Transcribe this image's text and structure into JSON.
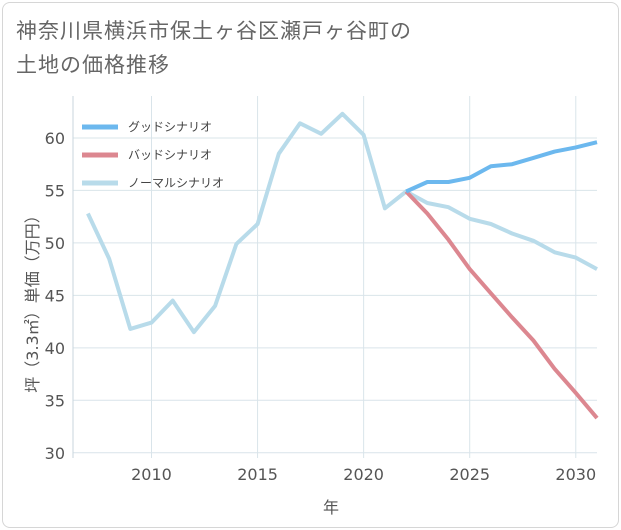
{
  "title_line1": "神奈川県横浜市保土ヶ谷区瀬戸ヶ谷町の",
  "title_line2": "土地の価格推移",
  "chart_data": {
    "type": "line",
    "xlabel": "年",
    "ylabel": "坪（3.3㎡）単価（万円）",
    "xlim": [
      2006.3,
      2031
    ],
    "ylim": [
      29.5,
      64
    ],
    "xticks": [
      2010,
      2015,
      2020,
      2025,
      2030
    ],
    "yticks": [
      30,
      35,
      40,
      45,
      50,
      55,
      60
    ],
    "grid": true,
    "legend_position": "top-left",
    "series": [
      {
        "name": "グッドシナリオ",
        "color": "#6cb8ee",
        "x": [
          2022,
          2023,
          2024,
          2025,
          2026,
          2027,
          2028,
          2029,
          2030,
          2031
        ],
        "values": [
          54.9,
          55.8,
          55.8,
          56.2,
          57.3,
          57.5,
          58.1,
          58.7,
          59.1,
          59.6
        ]
      },
      {
        "name": "バッドシナリオ",
        "color": "#dc8790",
        "x": [
          2022,
          2023,
          2024,
          2025,
          2026,
          2027,
          2028,
          2029,
          2030,
          2031
        ],
        "values": [
          54.9,
          52.8,
          50.3,
          47.5,
          45.2,
          42.9,
          40.7,
          38.0,
          35.7,
          33.3
        ]
      },
      {
        "name": "ノーマルシナリオ",
        "color": "#b8dbea",
        "x": [
          2007,
          2008,
          2009,
          2010,
          2011,
          2012,
          2013,
          2014,
          2015,
          2016,
          2017,
          2018,
          2019,
          2020,
          2021,
          2022,
          2023,
          2024,
          2025,
          2026,
          2027,
          2028,
          2029,
          2030,
          2031
        ],
        "values": [
          52.8,
          48.5,
          41.8,
          42.4,
          44.5,
          41.5,
          44.0,
          49.9,
          51.8,
          58.5,
          61.4,
          60.4,
          62.3,
          60.3,
          53.3,
          54.9,
          53.8,
          53.4,
          52.3,
          51.8,
          50.9,
          50.2,
          49.1,
          48.6,
          47.5
        ]
      }
    ]
  }
}
